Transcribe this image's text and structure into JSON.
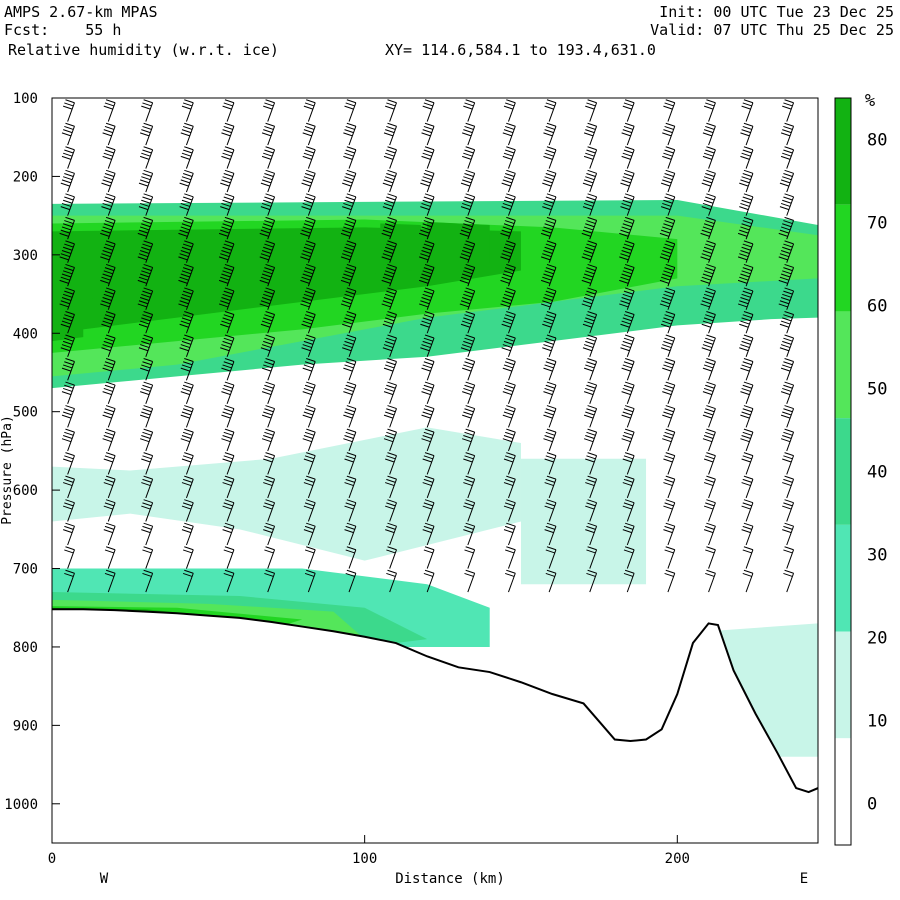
{
  "header": {
    "model": "AMPS 2.67-km MPAS",
    "forecast": "Fcst:    55 h",
    "field": "Relative humidity (w.r.t. ice)",
    "xy": "XY= 114.6,584.1 to 193.4,631.0",
    "init": "Init: 00 UTC Tue 23 Dec 25",
    "valid": "Valid: 07 UTC Thu 25 Dec 25"
  },
  "chart_data": {
    "type": "heatmap",
    "title": "Relative humidity (w.r.t. ice)",
    "xlabel": "Distance (km)",
    "ylabel": "Pressure (hPa)",
    "xlim": [
      0,
      245
    ],
    "ylim": [
      1050,
      100
    ],
    "x_ticks": [
      0,
      100,
      200
    ],
    "y_ticks": [
      100,
      200,
      300,
      400,
      500,
      600,
      700,
      800,
      900,
      1000
    ],
    "left_end_label": "W",
    "right_end_label": "E",
    "colorbar": {
      "unit": "%",
      "levels": [
        0,
        10,
        20,
        30,
        40,
        50,
        60,
        70,
        80
      ],
      "colors": [
        "#ffffff",
        "#c8f5e8",
        "#50e6b4",
        "#3cd98c",
        "#54e65a",
        "#22d622",
        "#12b212"
      ]
    },
    "terrain": {
      "distance_km": [
        0,
        10,
        20,
        30,
        40,
        50,
        60,
        70,
        80,
        90,
        100,
        110,
        120,
        130,
        140,
        150,
        160,
        170,
        175,
        180,
        185,
        190,
        195,
        200,
        205,
        210,
        213,
        218,
        225,
        232,
        238,
        242,
        245
      ],
      "pressure_hpa": [
        752,
        752,
        753,
        755,
        757,
        760,
        763,
        768,
        774,
        780,
        787,
        795,
        812,
        826,
        832,
        845,
        860,
        872,
        895,
        918,
        920,
        918,
        905,
        860,
        795,
        770,
        772,
        830,
        885,
        935,
        980,
        985,
        980
      ]
    },
    "rh_regions": [
      {
        "level": 30,
        "x": [
          0,
          200,
          245,
          245,
          230,
          200,
          160,
          120,
          80,
          40,
          0
        ],
        "p": [
          235,
          230,
          262,
          380,
          382,
          390,
          410,
          430,
          440,
          455,
          470
        ]
      },
      {
        "level": 40,
        "x": [
          0,
          200,
          245,
          245,
          200,
          160,
          120,
          80,
          40,
          0
        ],
        "p": [
          250,
          250,
          275,
          330,
          340,
          360,
          380,
          410,
          440,
          455
        ]
      },
      {
        "level": 50,
        "x": [
          0,
          100,
          160,
          200,
          200,
          160,
          120,
          80,
          40,
          0
        ],
        "p": [
          260,
          255,
          265,
          280,
          330,
          360,
          375,
          395,
          410,
          425
        ]
      },
      {
        "level": 60,
        "x": [
          0,
          100,
          150,
          150,
          120,
          80,
          40,
          0
        ],
        "p": [
          270,
          265,
          270,
          320,
          340,
          360,
          380,
          400
        ]
      },
      {
        "level": 70,
        "x": [
          0,
          60,
          100,
          140,
          140,
          100,
          60,
          0
        ],
        "p": [
          275,
          272,
          270,
          275,
          310,
          325,
          340,
          360
        ]
      },
      {
        "level": 80,
        "x": [
          105,
          118,
          118,
          105
        ],
        "p": [
          260,
          262,
          320,
          318
        ]
      },
      {
        "level": 80,
        "x": [
          120,
          140,
          140,
          120
        ],
        "p": [
          258,
          262,
          322,
          318
        ]
      },
      {
        "level": 80,
        "x": [
          0,
          10,
          10,
          0
        ],
        "p": [
          380,
          385,
          405,
          410
        ]
      },
      {
        "level": 10,
        "x": [
          0,
          25,
          70,
          120,
          150,
          150,
          100,
          60,
          25,
          0
        ],
        "p": [
          570,
          575,
          560,
          520,
          540,
          640,
          690,
          650,
          630,
          640
        ]
      },
      {
        "level": 10,
        "x": [
          150,
          190,
          190,
          150
        ],
        "p": [
          560,
          560,
          720,
          720
        ]
      },
      {
        "level": 10,
        "x": [
          210,
          245,
          245,
          210
        ],
        "p": [
          780,
          770,
          940,
          940
        ]
      },
      {
        "level": 20,
        "x": [
          0,
          80,
          120,
          140,
          140,
          0
        ],
        "p": [
          700,
          700,
          720,
          750,
          800,
          800
        ]
      },
      {
        "level": 30,
        "x": [
          0,
          60,
          100,
          120,
          100,
          0
        ],
        "p": [
          730,
          735,
          750,
          790,
          800,
          800
        ]
      },
      {
        "level": 40,
        "x": [
          0,
          50,
          90,
          100,
          0
        ],
        "p": [
          740,
          745,
          755,
          790,
          780
        ]
      },
      {
        "level": 50,
        "x": [
          0,
          40,
          80,
          60,
          0
        ],
        "p": [
          748,
          750,
          765,
          790,
          785
        ]
      },
      {
        "level": 60,
        "x": [
          0,
          30,
          50,
          40,
          0
        ],
        "p": [
          750,
          752,
          760,
          780,
          780
        ]
      }
    ],
    "wind_barbs": {
      "columns_km": [
        5,
        18,
        30,
        43,
        56,
        69,
        82,
        95,
        108,
        120,
        133,
        146,
        159,
        172,
        184,
        197,
        210,
        222,
        235
      ],
      "levels_hpa": [
        130,
        160,
        190,
        220,
        250,
        280,
        310,
        340,
        370,
        400,
        430,
        460,
        490,
        520,
        550,
        580,
        610,
        640,
        670,
        700,
        730
      ],
      "speed_kt": [
        30,
        35,
        40,
        45,
        50,
        55,
        60,
        60,
        55,
        50,
        45,
        40,
        40,
        35,
        35,
        30,
        30,
        25,
        25,
        20,
        20
      ]
    }
  }
}
